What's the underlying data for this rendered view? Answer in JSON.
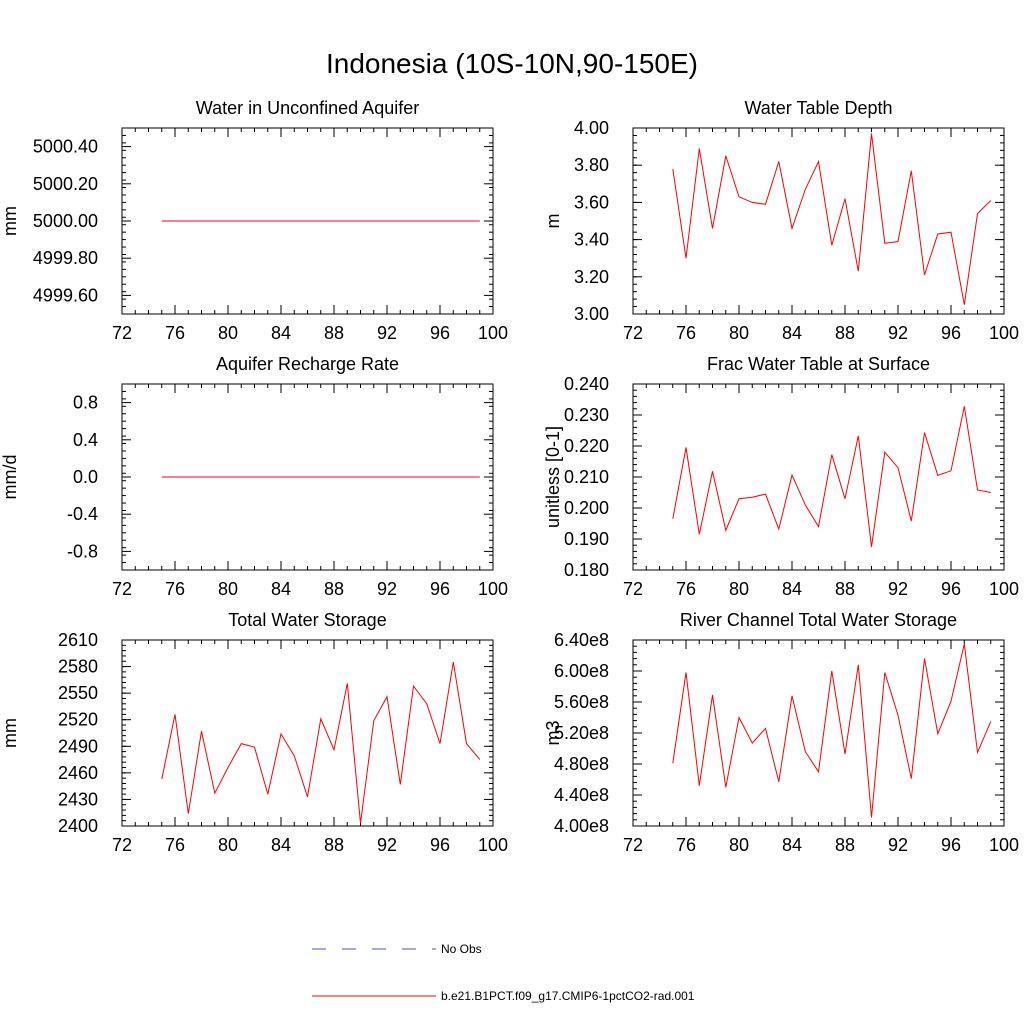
{
  "figure": {
    "title": "Indonesia (10S-10N,90-150E)"
  },
  "legend": {
    "position": "bottom-center",
    "entries": [
      {
        "label": "No Obs",
        "color": "#4a55c4",
        "dash": "dashed"
      },
      {
        "label": "b.e21.B1PCT.f09_g17.CMIP6-1pctCO2-rad.001",
        "color": "#ff0000",
        "dash": "solid"
      }
    ]
  },
  "chart_data": [
    {
      "type": "line",
      "title": "Water in Unconfined Aquifer",
      "ylabel": "mm",
      "xlim": [
        72,
        100
      ],
      "ylim": [
        4999.5,
        5000.5
      ],
      "xticks": [
        72,
        76,
        80,
        84,
        88,
        92,
        96,
        100
      ],
      "xtick_labels": [
        "72",
        "76",
        "80",
        "84",
        "88",
        "92",
        "96",
        "100"
      ],
      "yticks": [
        4999.6,
        4999.8,
        5000.0,
        5000.2,
        5000.4
      ],
      "ytick_labels": [
        "4999.60",
        "4999.80",
        "5000.00",
        "5000.20",
        "5000.40"
      ],
      "x": [
        75,
        76,
        77,
        78,
        79,
        80,
        81,
        82,
        83,
        84,
        85,
        86,
        87,
        88,
        89,
        90,
        91,
        92,
        93,
        94,
        95,
        96,
        97,
        98,
        99
      ],
      "series": [
        {
          "color": "#ff0000",
          "values": [
            5000,
            5000,
            5000,
            5000,
            5000,
            5000,
            5000,
            5000,
            5000,
            5000,
            5000,
            5000,
            5000,
            5000,
            5000,
            5000,
            5000,
            5000,
            5000,
            5000,
            5000,
            5000,
            5000,
            5000,
            5000
          ]
        }
      ]
    },
    {
      "type": "line",
      "title": "Water Table Depth",
      "ylabel": "m",
      "xlim": [
        72,
        100
      ],
      "ylim": [
        3.0,
        4.0
      ],
      "xticks": [
        72,
        76,
        80,
        84,
        88,
        92,
        96,
        100
      ],
      "xtick_labels": [
        "72",
        "76",
        "80",
        "84",
        "88",
        "92",
        "96",
        "100"
      ],
      "yticks": [
        3.0,
        3.2,
        3.4,
        3.6,
        3.8,
        4.0
      ],
      "ytick_labels": [
        "3.00",
        "3.20",
        "3.40",
        "3.60",
        "3.80",
        "4.00"
      ],
      "x": [
        75,
        76,
        77,
        78,
        79,
        80,
        81,
        82,
        83,
        84,
        85,
        86,
        87,
        88,
        89,
        90,
        91,
        92,
        93,
        94,
        95,
        96,
        97,
        98,
        99
      ],
      "series": [
        {
          "color": "#ff0000",
          "values": [
            3.78,
            3.3,
            3.89,
            3.46,
            3.85,
            3.63,
            3.6,
            3.59,
            3.82,
            3.46,
            3.67,
            3.82,
            3.37,
            3.62,
            3.23,
            3.97,
            3.38,
            3.39,
            3.77,
            3.21,
            3.43,
            3.44,
            3.05,
            3.54,
            3.61
          ]
        }
      ]
    },
    {
      "type": "line",
      "title": "Aquifer Recharge Rate",
      "ylabel": "mm/d",
      "xlim": [
        72,
        100
      ],
      "ylim": [
        -1.0,
        1.0
      ],
      "xticks": [
        72,
        76,
        80,
        84,
        88,
        92,
        96,
        100
      ],
      "xtick_labels": [
        "72",
        "76",
        "80",
        "84",
        "88",
        "92",
        "96",
        "100"
      ],
      "yticks": [
        -0.8,
        -0.4,
        0.0,
        0.4,
        0.8
      ],
      "ytick_labels": [
        "-0.8",
        "-0.4",
        "0.0",
        "0.4",
        "0.8"
      ],
      "x": [
        75,
        76,
        77,
        78,
        79,
        80,
        81,
        82,
        83,
        84,
        85,
        86,
        87,
        88,
        89,
        90,
        91,
        92,
        93,
        94,
        95,
        96,
        97,
        98,
        99
      ],
      "series": [
        {
          "color": "#ff0000",
          "values": [
            0,
            0,
            0,
            0,
            0,
            0,
            0,
            0,
            0,
            0,
            0,
            0,
            0,
            0,
            0,
            0,
            0,
            0,
            0,
            0,
            0,
            0,
            0,
            0,
            0
          ]
        }
      ]
    },
    {
      "type": "line",
      "title": "Frac Water Table at Surface",
      "ylabel": "unitless [0-1]",
      "xlim": [
        72,
        100
      ],
      "ylim": [
        0.18,
        0.24
      ],
      "xticks": [
        72,
        76,
        80,
        84,
        88,
        92,
        96,
        100
      ],
      "xtick_labels": [
        "72",
        "76",
        "80",
        "84",
        "88",
        "92",
        "96",
        "100"
      ],
      "yticks": [
        0.18,
        0.19,
        0.2,
        0.21,
        0.22,
        0.23,
        0.24
      ],
      "ytick_labels": [
        "0.180",
        "0.190",
        "0.200",
        "0.210",
        "0.220",
        "0.230",
        "0.240"
      ],
      "x": [
        75,
        76,
        77,
        78,
        79,
        80,
        81,
        82,
        83,
        84,
        85,
        86,
        87,
        88,
        89,
        90,
        91,
        92,
        93,
        94,
        95,
        96,
        97,
        98,
        99
      ],
      "series": [
        {
          "color": "#ff0000",
          "values": [
            0.1965,
            0.2195,
            0.1915,
            0.2118,
            0.1928,
            0.203,
            0.2035,
            0.2045,
            0.1932,
            0.2106,
            0.201,
            0.194,
            0.2172,
            0.203,
            0.2233,
            0.1875,
            0.218,
            0.213,
            0.1958,
            0.2243,
            0.2105,
            0.212,
            0.2328,
            0.2058,
            0.205
          ]
        }
      ]
    },
    {
      "type": "line",
      "title": "Total Water Storage",
      "ylabel": "mm",
      "xlim": [
        72,
        100
      ],
      "ylim": [
        2400,
        2610
      ],
      "xticks": [
        72,
        76,
        80,
        84,
        88,
        92,
        96,
        100
      ],
      "xtick_labels": [
        "72",
        "76",
        "80",
        "84",
        "88",
        "92",
        "96",
        "100"
      ],
      "yticks": [
        2400,
        2430,
        2460,
        2490,
        2520,
        2550,
        2580,
        2610
      ],
      "ytick_labels": [
        "2400",
        "2430",
        "2460",
        "2490",
        "2520",
        "2550",
        "2580",
        "2610"
      ],
      "x": [
        75,
        76,
        77,
        78,
        79,
        80,
        81,
        82,
        83,
        84,
        85,
        86,
        87,
        88,
        89,
        90,
        91,
        92,
        93,
        94,
        95,
        96,
        97,
        98,
        99
      ],
      "series": [
        {
          "color": "#ff0000",
          "values": [
            2453,
            2526,
            2414,
            2507,
            2437,
            2466,
            2493,
            2489,
            2436,
            2504,
            2479,
            2433,
            2521,
            2486,
            2561,
            2403,
            2519,
            2546,
            2447,
            2558,
            2538,
            2493,
            2585,
            2493,
            2475
          ]
        }
      ]
    },
    {
      "type": "line",
      "title": "River Channel Total Water Storage",
      "ylabel": "m3",
      "xlim": [
        72,
        100
      ],
      "ylim": [
        400000000,
        640000000
      ],
      "xticks": [
        72,
        76,
        80,
        84,
        88,
        92,
        96,
        100
      ],
      "xtick_labels": [
        "72",
        "76",
        "80",
        "84",
        "88",
        "92",
        "96",
        "100"
      ],
      "yticks": [
        400000000,
        440000000,
        480000000,
        520000000,
        560000000,
        600000000,
        640000000
      ],
      "ytick_labels": [
        "4.00e8",
        "4.40e8",
        "4.80e8",
        "5.20e8",
        "5.60e8",
        "6.00e8",
        "6.40e8"
      ],
      "x": [
        75,
        76,
        77,
        78,
        79,
        80,
        81,
        82,
        83,
        84,
        85,
        86,
        87,
        88,
        89,
        90,
        91,
        92,
        93,
        94,
        95,
        96,
        97,
        98,
        99
      ],
      "series": [
        {
          "color": "#ff0000",
          "values": [
            481000000,
            598000000,
            452000000,
            569000000,
            450000000,
            540000000,
            507000000,
            526000000,
            457000000,
            568000000,
            496000000,
            470000000,
            600000000,
            493000000,
            608000000,
            411000000,
            598000000,
            543000000,
            461000000,
            616000000,
            519000000,
            561000000,
            635000000,
            495000000,
            535000000
          ]
        }
      ]
    }
  ]
}
